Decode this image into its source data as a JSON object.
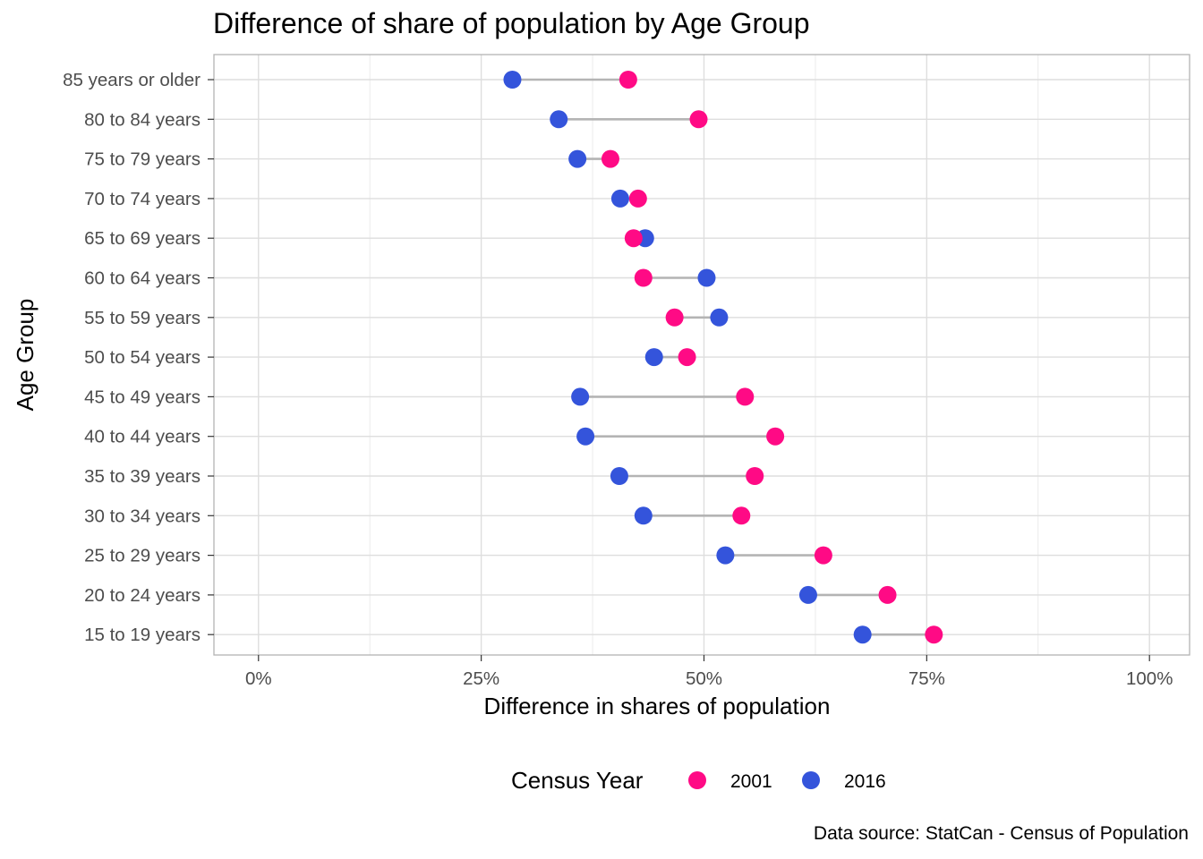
{
  "chart_data": {
    "type": "scatter",
    "subtype": "dumbbell",
    "title": "Difference of share of population by Age Group",
    "xlabel": "Difference in shares of population",
    "ylabel": "Age Group",
    "caption": "Data source: StatCan - Census of Population",
    "xlim": [
      -0.05,
      1.045
    ],
    "x_ticks": [
      0,
      0.25,
      0.5,
      0.75,
      1.0
    ],
    "x_tick_labels": [
      "0%",
      "25%",
      "50%",
      "75%",
      "100%"
    ],
    "grid": true,
    "legend": {
      "title": "Census Year",
      "position": "bottom",
      "entries": [
        "2001",
        "2016"
      ]
    },
    "categories": [
      "85 years or older",
      "80 to 84 years",
      "75 to 79 years",
      "70 to 74 years",
      "65 to 69 years",
      "60 to 64 years",
      "55 to 59 years",
      "50 to 54 years",
      "45 to 49 years",
      "40 to 44 years",
      "35 to 39 years",
      "30 to 34 years",
      "25 to 29 years",
      "20 to 24 years",
      "15 to 19 years"
    ],
    "series": [
      {
        "name": "2001",
        "color": "#ff0a85",
        "values": [
          0.415,
          0.494,
          0.395,
          0.426,
          0.421,
          0.432,
          0.467,
          0.481,
          0.546,
          0.58,
          0.557,
          0.542,
          0.634,
          0.706,
          0.758
        ]
      },
      {
        "name": "2016",
        "color": "#3454db",
        "values": [
          0.285,
          0.337,
          0.358,
          0.406,
          0.434,
          0.503,
          0.517,
          0.444,
          0.361,
          0.367,
          0.405,
          0.432,
          0.524,
          0.617,
          0.678
        ]
      }
    ],
    "connector_color": "#b4b4b4"
  }
}
